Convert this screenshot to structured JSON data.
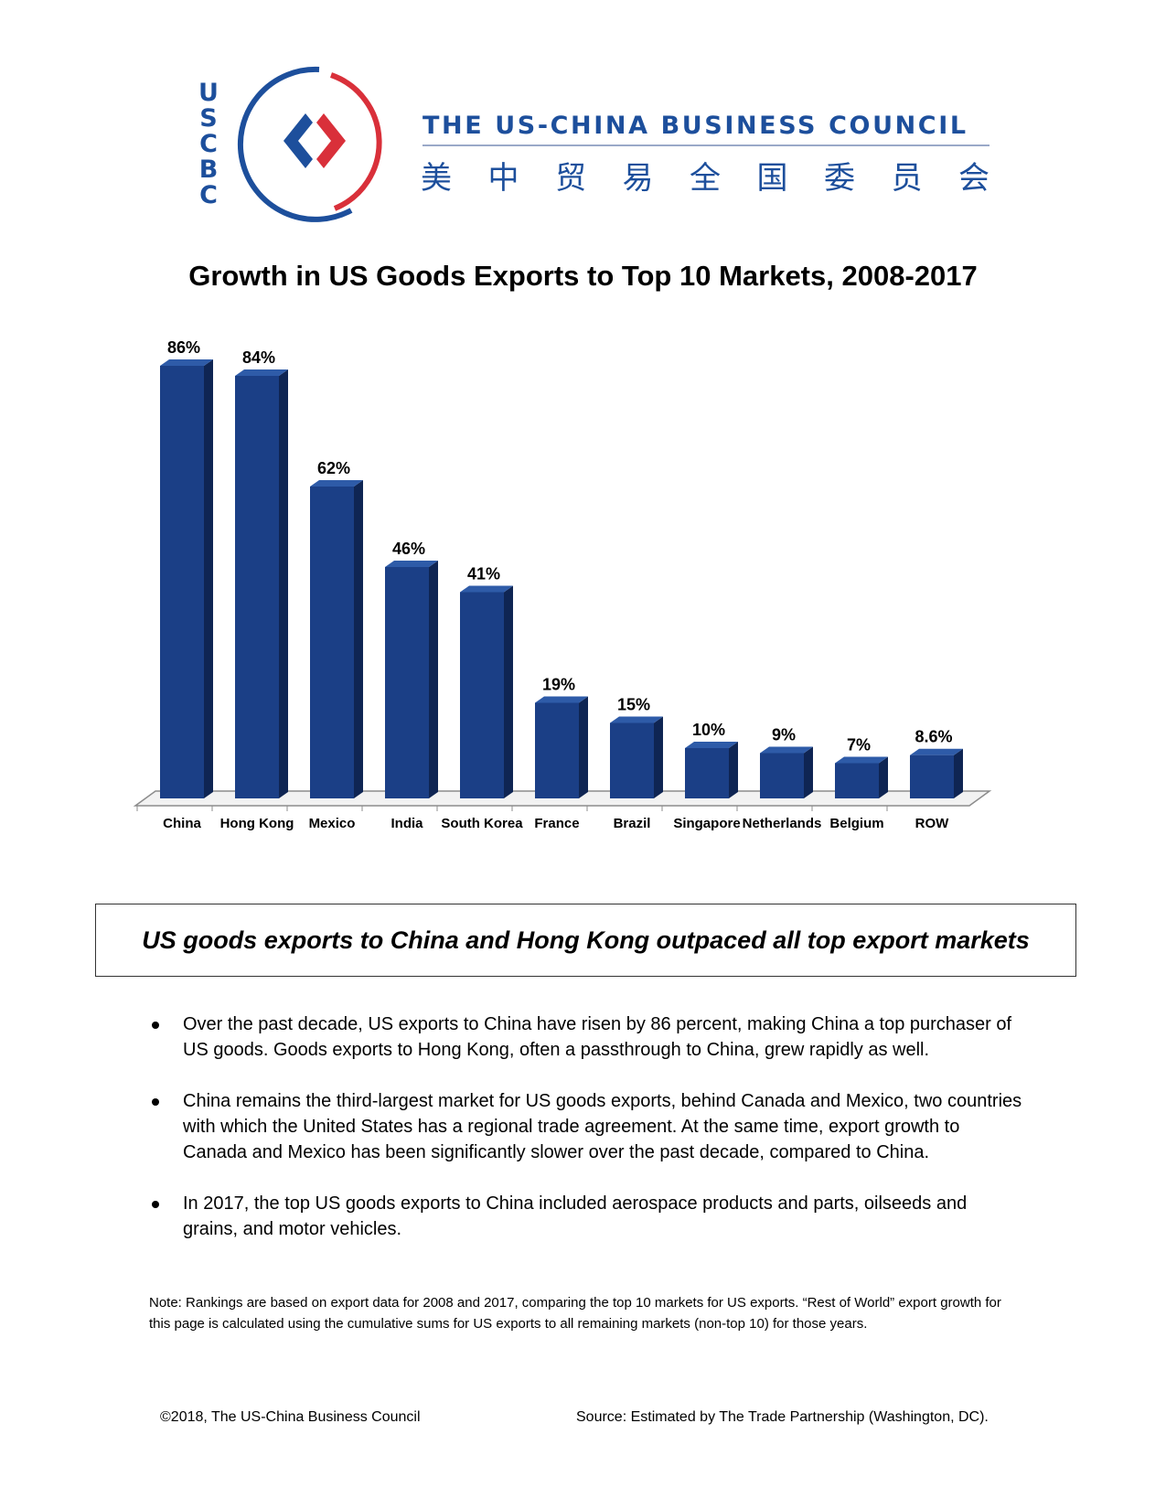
{
  "header": {
    "logo_letters": [
      "U",
      "S",
      "C",
      "B",
      "C"
    ],
    "org_name_en": "THE US-CHINA BUSINESS COUNCIL",
    "org_name_cn": [
      "美",
      "中",
      "贸",
      "易",
      "全",
      "国",
      "委",
      "员",
      "会"
    ],
    "brand_blue": "#1d4f9c",
    "brand_red": "#d9303a"
  },
  "title": "Growth in US Goods Exports to Top 10 Markets, 2008-2017",
  "chart_data": {
    "type": "bar",
    "categories": [
      "China",
      "Hong Kong",
      "Mexico",
      "India",
      "South Korea",
      "France",
      "Brazil",
      "Singapore",
      "Netherlands",
      "Belgium",
      "ROW"
    ],
    "values": [
      86,
      84,
      62,
      46,
      41,
      19,
      15,
      10,
      9,
      7,
      8.6
    ],
    "data_labels": [
      "86%",
      "84%",
      "62%",
      "46%",
      "41%",
      "19%",
      "15%",
      "10%",
      "9%",
      "7%",
      "8.6%"
    ],
    "unit": "%",
    "ylim": [
      0,
      86
    ],
    "grid": false,
    "legend": "none",
    "bar_color": "#1b3f86",
    "bar_side_color": "#0f2553",
    "bar_top_color": "#2e5ba8"
  },
  "callout": "US goods exports to China and Hong Kong outpaced all top export markets",
  "bullets": [
    "Over the past decade, US exports to China have risen by 86 percent, making China a top purchaser of US goods. Goods exports to Hong Kong, often a passthrough to China, grew rapidly as well.",
    "China remains the third-largest market for US goods exports, behind Canada and Mexico, two countries with which the United States has a regional trade agreement. At the same time, export growth to Canada and Mexico has been significantly slower over the past decade, compared to China.",
    "In 2017, the top US goods exports to China included aerospace products and parts, oilseeds and grains, and motor vehicles."
  ],
  "note": "Note: Rankings are based on export data for 2008 and 2017, comparing the top 10 markets for US exports. “Rest of World” export growth for this page is calculated using the cumulative sums for US exports to all remaining markets (non-top 10) for those years.",
  "footer": {
    "copyright": "©2018, The US-China Business Council",
    "source": "Source: Estimated by The Trade Partnership (Washington, DC)."
  }
}
